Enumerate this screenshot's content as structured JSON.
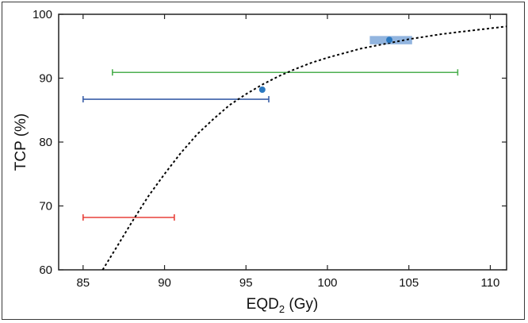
{
  "chart_data": {
    "type": "scatter",
    "title": "",
    "xlabel": "EQD",
    "xlabel_subscript": "2",
    "xlabel_unit": " (Gy)",
    "ylabel": "TCP (%)",
    "xlim": [
      83.5,
      111
    ],
    "ylim": [
      60,
      100
    ],
    "xticks": [
      85,
      90,
      95,
      100,
      105,
      110
    ],
    "yticks": [
      60,
      70,
      80,
      90,
      100
    ],
    "grid": false,
    "curve": {
      "name": "TCP model fit",
      "style": "dotted",
      "color": "#000000",
      "x": [
        86.2,
        87,
        88,
        89,
        90,
        91,
        92,
        93,
        94,
        95,
        96,
        97,
        98,
        99,
        100,
        101,
        102,
        103,
        104,
        105,
        106,
        107,
        108,
        109,
        110,
        111
      ],
      "y": [
        60.0,
        63.3,
        67.5,
        71.5,
        75.0,
        78.3,
        81.2,
        83.6,
        85.8,
        87.5,
        89.0,
        90.3,
        91.4,
        92.4,
        93.2,
        93.9,
        94.6,
        95.1,
        95.6,
        96.1,
        96.5,
        96.9,
        97.2,
        97.5,
        97.8,
        98.1
      ]
    },
    "error_bars": [
      {
        "name": "red",
        "y": 68.2,
        "xmin": 85.0,
        "xmax": 90.6,
        "color": "#e8413a"
      },
      {
        "name": "blue",
        "y": 86.7,
        "xmin": 85.0,
        "xmax": 96.4,
        "color": "#3a5fa8"
      },
      {
        "name": "green",
        "y": 90.9,
        "xmin": 86.8,
        "xmax": 108.0,
        "color": "#4caf50"
      }
    ],
    "points": [
      {
        "name": "point-a",
        "x": 96.0,
        "y": 88.2,
        "color": "#2a78c0"
      },
      {
        "name": "point-b",
        "x": 103.8,
        "y": 96.0,
        "color": "#2a78c0"
      }
    ],
    "shaded_box": {
      "name": "uncertainty-box",
      "xmin": 102.6,
      "xmax": 105.2,
      "ymin": 95.3,
      "ymax": 96.6,
      "color": "#7fa8d9"
    }
  }
}
